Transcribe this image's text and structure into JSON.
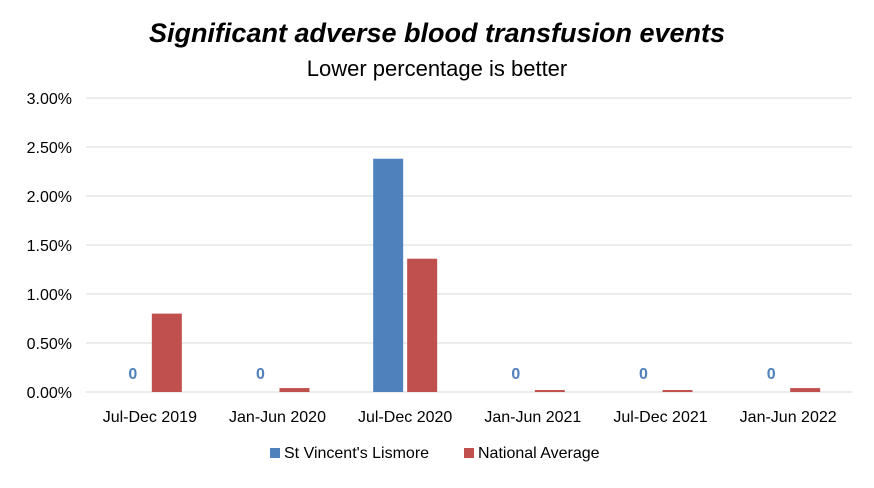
{
  "title": "Significant adverse blood transfusion events",
  "subtitle": "Lower percentage is better",
  "colors": {
    "series_a": "#4f81bd",
    "series_b": "#c0504d",
    "grid": "#d9d9d9",
    "zero_label": "#4f81bd"
  },
  "chart_data": {
    "type": "bar",
    "categories": [
      "Jul-Dec 2019",
      "Jan-Jun 2020",
      "Jul-Dec 2020",
      "Jan-Jun 2021",
      "Jul-Dec 2021",
      "Jan-Jun 2022"
    ],
    "series": [
      {
        "name": "St Vincent's Lismore",
        "values": [
          0,
          0,
          2.38,
          0,
          0,
          0
        ]
      },
      {
        "name": "National Average",
        "values": [
          0.8,
          0.04,
          1.36,
          0.02,
          0.02,
          0.04
        ]
      }
    ],
    "data_labels": [
      "0",
      "0",
      "",
      "0",
      "0",
      "0"
    ],
    "yticks": [
      "0.00%",
      "0.50%",
      "1.00%",
      "1.50%",
      "2.00%",
      "2.50%",
      "3.00%"
    ],
    "ylim": [
      0,
      3
    ],
    "ylabel": "",
    "xlabel": "",
    "grid": true,
    "legend": "bottom"
  }
}
